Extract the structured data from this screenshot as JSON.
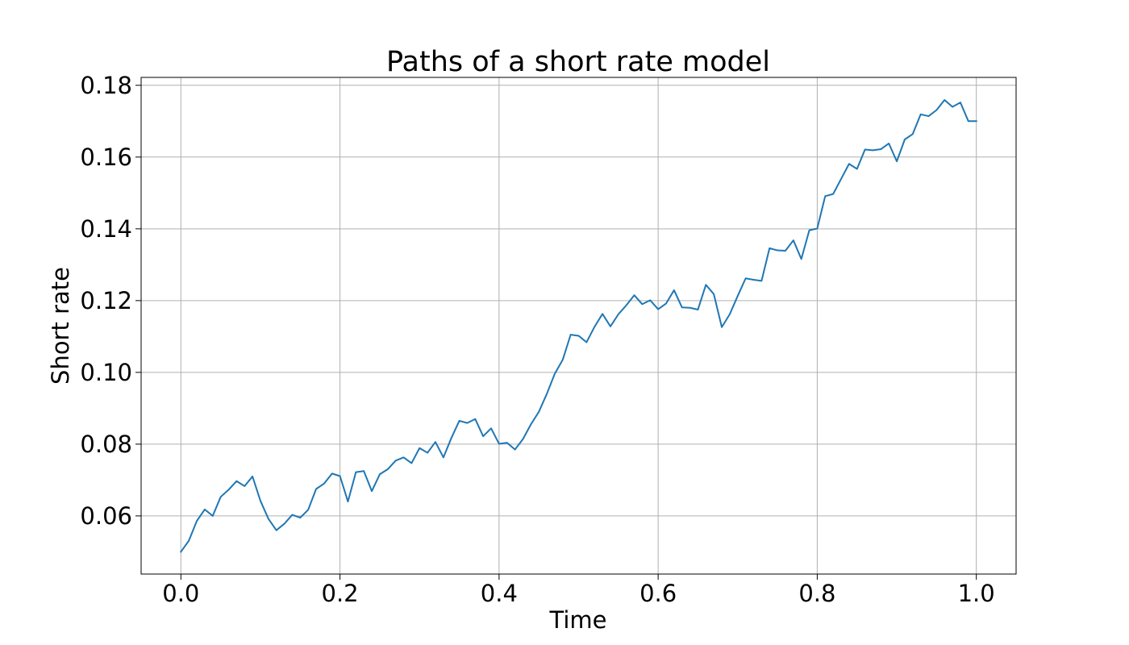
{
  "chart_data": {
    "type": "line",
    "title": "Paths of a short rate model",
    "xlabel": "Time",
    "ylabel": "Short rate",
    "xlim": [
      -0.05,
      1.05
    ],
    "ylim": [
      0.0438,
      0.1822
    ],
    "xticks": [
      0.0,
      0.2,
      0.4,
      0.6,
      0.8,
      1.0
    ],
    "xtick_labels": [
      "0.0",
      "0.2",
      "0.4",
      "0.6",
      "0.8",
      "1.0"
    ],
    "yticks": [
      0.06,
      0.08,
      0.1,
      0.12,
      0.14,
      0.16,
      0.18
    ],
    "ytick_labels": [
      "0.06",
      "0.08",
      "0.10",
      "0.12",
      "0.14",
      "0.16",
      "0.18"
    ],
    "grid": true,
    "line_color": "#1f77b4",
    "series": [
      {
        "x": [
          0.0,
          0.01,
          0.02,
          0.03,
          0.04,
          0.05,
          0.06,
          0.07,
          0.08,
          0.09,
          0.1,
          0.11,
          0.12,
          0.13,
          0.14,
          0.15,
          0.16,
          0.17,
          0.18,
          0.19,
          0.2,
          0.21,
          0.22,
          0.23,
          0.24,
          0.25,
          0.26,
          0.27,
          0.28,
          0.29,
          0.3,
          0.31,
          0.32,
          0.33,
          0.34,
          0.35,
          0.36,
          0.37,
          0.38,
          0.39,
          0.4,
          0.41,
          0.42,
          0.43,
          0.44,
          0.45,
          0.46,
          0.47,
          0.48,
          0.49,
          0.5,
          0.51,
          0.52,
          0.53,
          0.54,
          0.55,
          0.56,
          0.57,
          0.58,
          0.59,
          0.6,
          0.61,
          0.62,
          0.63,
          0.64,
          0.65,
          0.66,
          0.67,
          0.68,
          0.69,
          0.7,
          0.71,
          0.72,
          0.73,
          0.74,
          0.75,
          0.76,
          0.77,
          0.78,
          0.79,
          0.8,
          0.81,
          0.82,
          0.83,
          0.84,
          0.85,
          0.86,
          0.87,
          0.88,
          0.89,
          0.9,
          0.91,
          0.92,
          0.93,
          0.94,
          0.95,
          0.96,
          0.97,
          0.98,
          0.99,
          1.0
        ],
        "values": [
          0.05,
          0.0531,
          0.0586,
          0.0618,
          0.06,
          0.0653,
          0.0673,
          0.0697,
          0.0683,
          0.071,
          0.0642,
          0.0592,
          0.056,
          0.0578,
          0.0603,
          0.0595,
          0.0617,
          0.0675,
          0.069,
          0.0718,
          0.0711,
          0.064,
          0.0722,
          0.0725,
          0.0669,
          0.0716,
          0.073,
          0.0754,
          0.0763,
          0.0747,
          0.0789,
          0.0776,
          0.0806,
          0.0763,
          0.0817,
          0.0865,
          0.0859,
          0.087,
          0.0822,
          0.0844,
          0.0801,
          0.0804,
          0.0785,
          0.0814,
          0.0855,
          0.089,
          0.094,
          0.0996,
          0.1035,
          0.1105,
          0.1102,
          0.1084,
          0.1127,
          0.1163,
          0.1128,
          0.1162,
          0.1187,
          0.1215,
          0.119,
          0.1201,
          0.1176,
          0.1192,
          0.1229,
          0.1181,
          0.118,
          0.1175,
          0.1244,
          0.1218,
          0.1126,
          0.1162,
          0.1213,
          0.1262,
          0.1258,
          0.1255,
          0.1346,
          0.134,
          0.1339,
          0.1368,
          0.1316,
          0.1396,
          0.1401,
          0.1491,
          0.1497,
          0.1539,
          0.1581,
          0.1567,
          0.1621,
          0.1619,
          0.1622,
          0.1638,
          0.1588,
          0.1649,
          0.1664,
          0.1719,
          0.1714,
          0.1731,
          0.1759,
          0.174,
          0.1752,
          0.17,
          0.17
        ]
      }
    ]
  }
}
